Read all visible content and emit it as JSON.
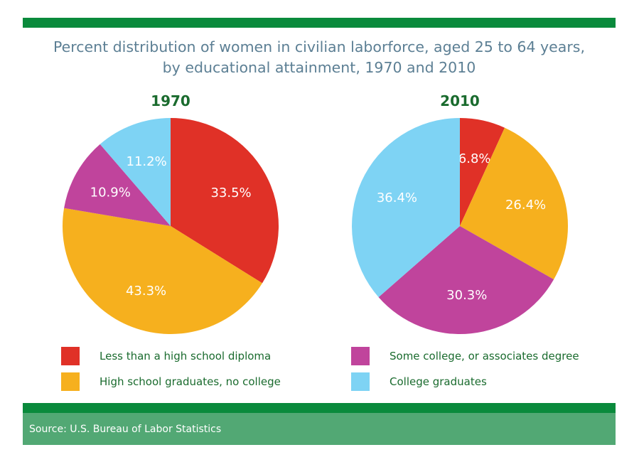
{
  "title_line1": "Percent distribution of women in civilian laborforce, aged 25 to 64 years,",
  "title_line2": "by educational attainment, 1970 and 2010",
  "source": "Source: U.S. Bureau of Labor Statistics",
  "colors": {
    "less_than_hs": "#e03127",
    "hs_grad": "#f6b01e",
    "some_college": "#c0449c",
    "college_grad": "#7ed3f4",
    "bar_dark": "#0a8a3c",
    "bar_light": "#52a874"
  },
  "chart_data": [
    {
      "type": "pie",
      "title": "1970",
      "categories": [
        "Less than a high school diploma",
        "High school graduates, no college",
        "Some college, or associates degree",
        "College graduates"
      ],
      "values": [
        33.5,
        43.3,
        10.9,
        11.2
      ],
      "labels": [
        "33.5%",
        "43.3%",
        "10.9%",
        "11.2%"
      ]
    },
    {
      "type": "pie",
      "title": "2010",
      "categories": [
        "Less than a high school diploma",
        "High school graduates, no college",
        "Some college, or associates degree",
        "College graduates"
      ],
      "values": [
        6.8,
        26.4,
        30.3,
        36.4
      ],
      "labels": [
        "6.8%",
        "26.4%",
        "30.3%",
        "36.4%"
      ]
    }
  ],
  "legend": [
    {
      "label": "Less than a high school diploma",
      "color": "#e03127"
    },
    {
      "label": "High school graduates, no college",
      "color": "#f6b01e"
    },
    {
      "label": "Some college, or associates degree",
      "color": "#c0449c"
    },
    {
      "label": "College graduates",
      "color": "#7ed3f4"
    }
  ]
}
